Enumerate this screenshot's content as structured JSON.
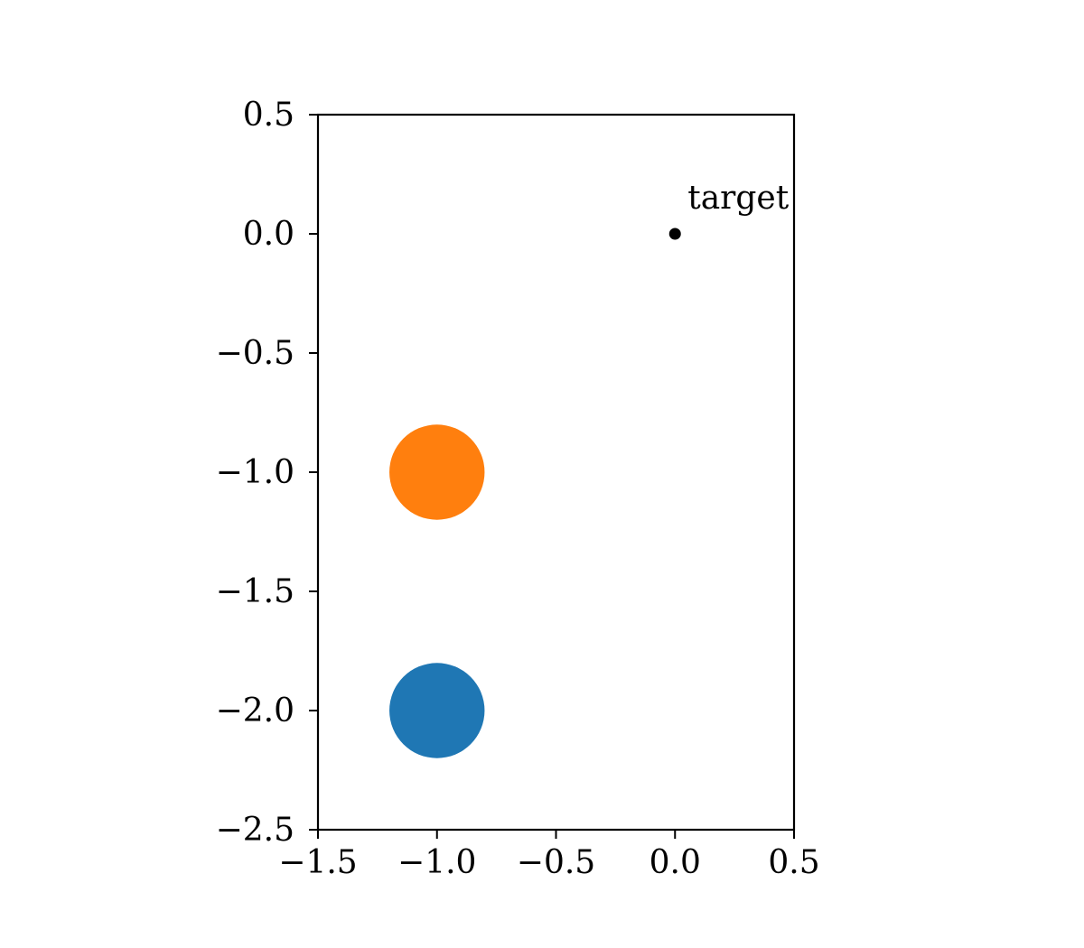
{
  "chart_data": {
    "type": "scatter",
    "xlim": [
      -1.5,
      0.5
    ],
    "ylim": [
      -2.5,
      0.5
    ],
    "xticks": [
      -1.5,
      -1.0,
      -0.5,
      0.0,
      0.5
    ],
    "xtick_labels": [
      "−1.5",
      "−1.0",
      "−0.5",
      "0.0",
      "0.5"
    ],
    "yticks": [
      0.5,
      0.0,
      -0.5,
      -1.0,
      -1.5,
      -2.0,
      -2.5
    ],
    "ytick_labels": [
      "0.5",
      "0.0",
      "−0.5",
      "−1.0",
      "−1.5",
      "−2.0",
      "−2.5"
    ],
    "grid": false,
    "circles": [
      {
        "x": -1.0,
        "y": -1.0,
        "radius": 0.2,
        "color": "#ff7f0e"
      },
      {
        "x": -1.0,
        "y": -2.0,
        "radius": 0.2,
        "color": "#1f77b4"
      }
    ],
    "points": [
      {
        "x": 0.0,
        "y": 0.0,
        "color": "#000000",
        "label": "target"
      }
    ]
  }
}
